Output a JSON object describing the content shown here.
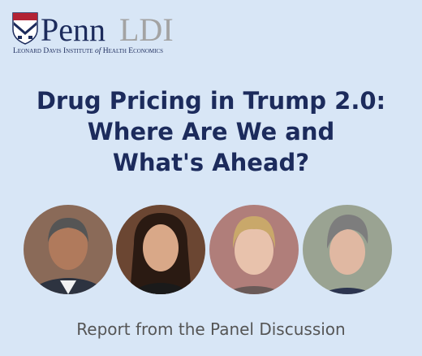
{
  "logo": {
    "name": "Penn",
    "org": "LDI",
    "tagline": {
      "before": "Leonard Davis Institute",
      "of": "of",
      "after": "Health Economics"
    }
  },
  "title": {
    "lines": [
      "Drug Pricing in Trump 2.0:",
      "Where Are We and",
      "What's Ahead?"
    ]
  },
  "footer": "Report from the Panel Discussion"
}
